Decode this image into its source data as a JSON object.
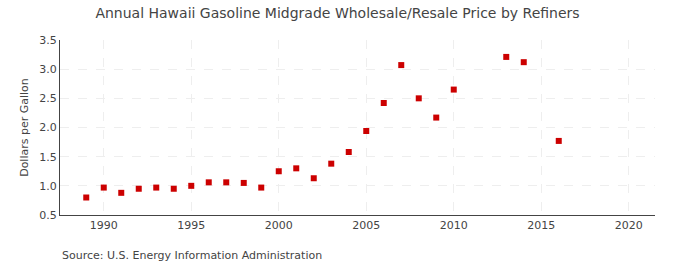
{
  "chart_data": {
    "type": "scatter",
    "title": "Annual Hawaii Gasoline Midgrade Wholesale/Resale Price by Refiners",
    "ylabel": "Dollars per Gallon",
    "annotations": [
      "Source: U.S. Energy Information Administration"
    ],
    "x": [
      1989,
      1990,
      1991,
      1992,
      1993,
      1994,
      1995,
      1996,
      1997,
      1998,
      1999,
      2000,
      2001,
      2002,
      2003,
      2004,
      2005,
      2006,
      2007,
      2008,
      2009,
      2010,
      2013,
      2014,
      2016
    ],
    "values": [
      0.8,
      0.97,
      0.88,
      0.95,
      0.97,
      0.95,
      1.0,
      1.06,
      1.06,
      1.05,
      0.97,
      1.25,
      1.3,
      1.13,
      1.38,
      1.58,
      1.94,
      2.42,
      3.07,
      2.5,
      2.17,
      2.65,
      3.21,
      3.12,
      1.77
    ],
    "color": "#cc0000",
    "marker": "square",
    "xlim": [
      1987.5,
      2021.5
    ],
    "ylim": [
      0.5,
      3.5
    ],
    "xticks": [
      1990,
      1995,
      2000,
      2005,
      2010,
      2015,
      2020
    ],
    "yticks": [
      0.5,
      {
        "value": 1,
        "label": "1.0"
      },
      1.5,
      {
        "value": 2,
        "label": "2.0"
      },
      2.5,
      {
        "value": 3,
        "label": "3.0"
      },
      3.5
    ],
    "grid": true
  }
}
